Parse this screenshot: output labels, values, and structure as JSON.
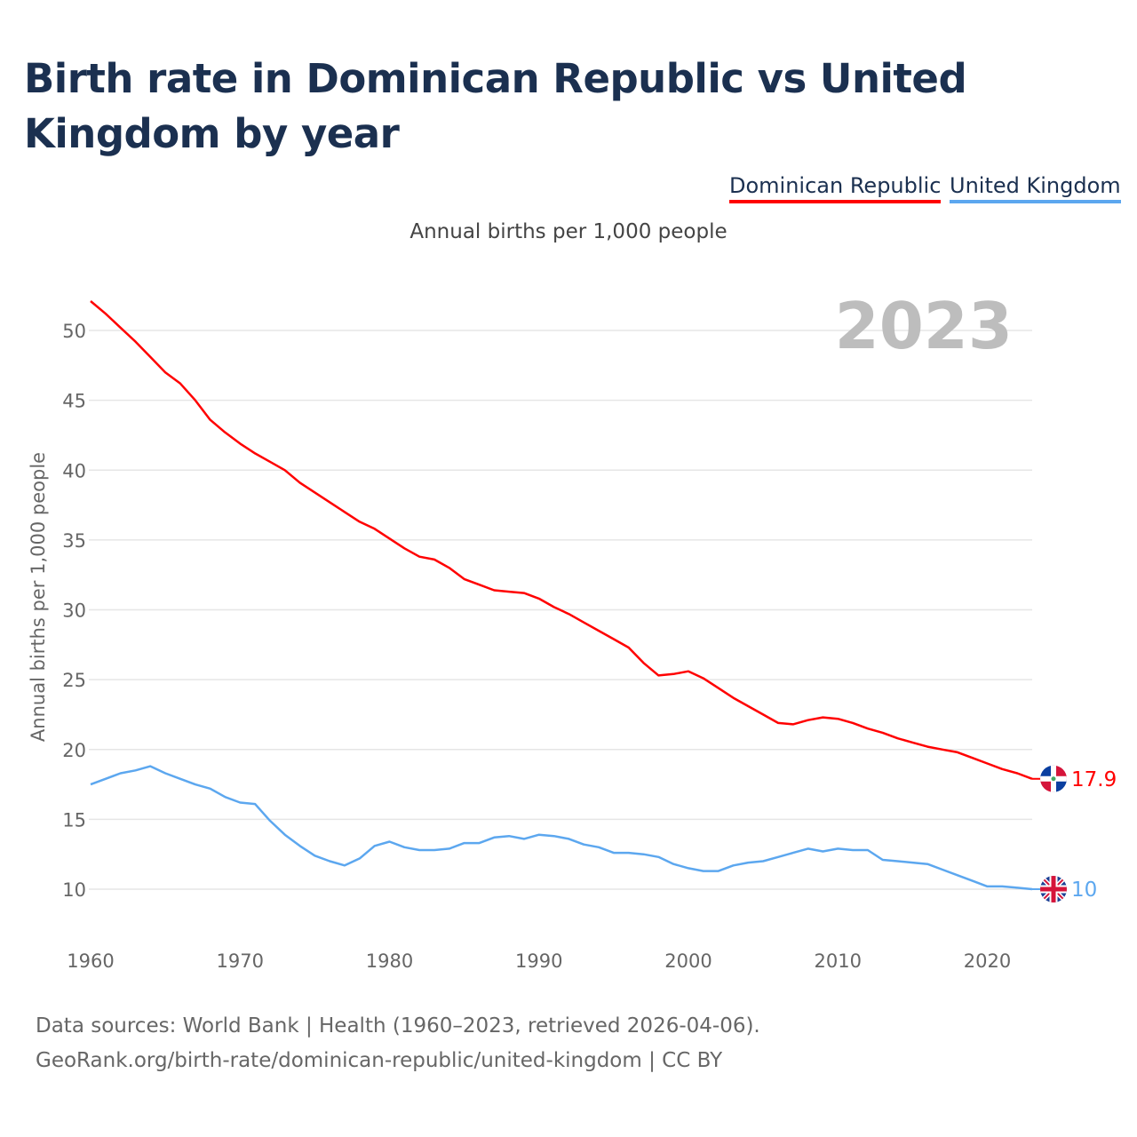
{
  "title": "Birth rate in Dominican Republic vs United Kingdom by year",
  "subtitle": "Annual births per 1,000 people",
  "footer": {
    "line1": "Data sources: World Bank | Health (1960–2023, retrieved 2026-04-06).",
    "line2": "GeoRank.org/birth-rate/dominican-republic/united-kingdom | CC BY"
  },
  "chart_data": {
    "type": "line",
    "title": "Birth rate in Dominican Republic vs United Kingdom by year",
    "ylabel": "Annual births per 1,000 people",
    "xlabel": "",
    "year_watermark": "2023",
    "xlim": [
      1960,
      2023
    ],
    "ylim": [
      8,
      52
    ],
    "xticks": [
      1960,
      1970,
      1980,
      1990,
      2000,
      2010,
      2020
    ],
    "yticks": [
      10,
      15,
      20,
      25,
      30,
      35,
      40,
      45,
      50
    ],
    "grid": true,
    "legend_position": "top-right",
    "x": [
      1960,
      1961,
      1962,
      1963,
      1964,
      1965,
      1966,
      1967,
      1968,
      1969,
      1970,
      1971,
      1972,
      1973,
      1974,
      1975,
      1976,
      1977,
      1978,
      1979,
      1980,
      1981,
      1982,
      1983,
      1984,
      1985,
      1986,
      1987,
      1988,
      1989,
      1990,
      1991,
      1992,
      1993,
      1994,
      1995,
      1996,
      1997,
      1998,
      1999,
      2000,
      2001,
      2002,
      2003,
      2004,
      2005,
      2006,
      2007,
      2008,
      2009,
      2010,
      2011,
      2012,
      2013,
      2014,
      2015,
      2016,
      2017,
      2018,
      2019,
      2020,
      2021,
      2022,
      2023
    ],
    "series": [
      {
        "name": "Dominican Republic",
        "color": "#ff0000",
        "end_label": "17.9",
        "values": [
          52.1,
          51.2,
          50.2,
          49.2,
          48.1,
          47.0,
          46.2,
          45.0,
          43.6,
          42.7,
          41.9,
          41.2,
          40.6,
          40.0,
          39.1,
          38.4,
          37.7,
          37.0,
          36.3,
          35.8,
          35.1,
          34.4,
          33.8,
          33.6,
          33.0,
          32.2,
          31.8,
          31.4,
          31.3,
          31.2,
          30.8,
          30.2,
          29.7,
          29.1,
          28.5,
          27.9,
          27.3,
          26.2,
          25.3,
          25.4,
          25.6,
          25.1,
          24.4,
          23.7,
          23.1,
          22.5,
          21.9,
          21.8,
          22.1,
          22.3,
          22.2,
          21.9,
          21.5,
          21.2,
          20.8,
          20.5,
          20.2,
          20.0,
          19.8,
          19.4,
          19.0,
          18.6,
          18.3,
          17.9
        ]
      },
      {
        "name": "United Kingdom",
        "color": "#5ca7ef",
        "end_label": "10",
        "values": [
          17.5,
          17.9,
          18.3,
          18.5,
          18.8,
          18.3,
          17.9,
          17.5,
          17.2,
          16.6,
          16.2,
          16.1,
          14.9,
          13.9,
          13.1,
          12.4,
          12.0,
          11.7,
          12.2,
          13.1,
          13.4,
          13.0,
          12.8,
          12.8,
          12.9,
          13.3,
          13.3,
          13.7,
          13.8,
          13.6,
          13.9,
          13.8,
          13.6,
          13.2,
          13.0,
          12.6,
          12.6,
          12.5,
          12.3,
          11.8,
          11.5,
          11.3,
          11.3,
          11.7,
          11.9,
          12.0,
          12.3,
          12.6,
          12.9,
          12.7,
          12.9,
          12.8,
          12.8,
          12.1,
          12.0,
          11.9,
          11.8,
          11.4,
          11.0,
          10.6,
          10.2,
          10.2,
          10.1,
          10.0
        ]
      }
    ]
  }
}
